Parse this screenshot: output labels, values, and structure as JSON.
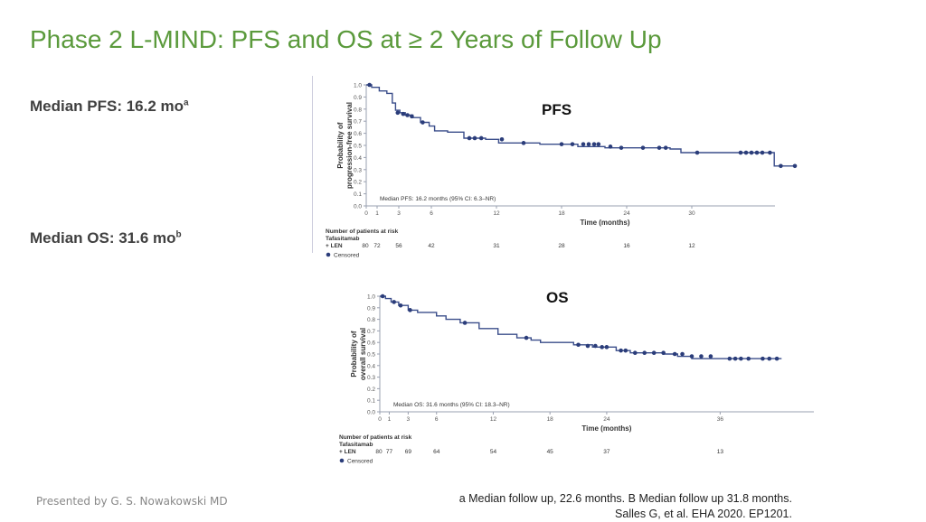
{
  "slide": {
    "title": "Phase 2 L-MIND: PFS and OS at ≥ 2 Years of Follow Up",
    "median_pfs_label": "Median PFS: 16.2 mo",
    "median_pfs_sup": "a",
    "median_os_label": "Median OS: 31.6 mo",
    "median_os_sup": "b",
    "presenter": "Presented by G. S. Nowakowski MD",
    "footnote_line1": "a Median follow up, 22.6 months. B Median follow up 31.8 months.",
    "footnote_line2": "Salles G, et al. EHA 2020. EP1201."
  },
  "colors": {
    "title": "#5b9a3c",
    "curve": "#3a4d8a",
    "marker": "#2b3d7a"
  },
  "chart_data": [
    {
      "type": "line",
      "title": "PFS",
      "ylabel": "Probability of progression-free survival",
      "ylabel_lines": [
        "Probability of",
        "progression-free survival"
      ],
      "xlabel": "Time (months)",
      "ylim": [
        0,
        1.0
      ],
      "xlim": [
        0,
        36
      ],
      "x_ticks": [
        0,
        1,
        3,
        6,
        12,
        18,
        24,
        30
      ],
      "y_ticks": [
        "0.0",
        "0.1",
        "0.2",
        "0.3",
        "0.4",
        "0.5",
        "0.6",
        "0.7",
        "0.8",
        "0.9",
        "1.0"
      ],
      "annotation": "Median PFS: 16.2 months (95% CI: 6.3–NR)",
      "risk_title": "Number of patients at risk",
      "risk_group": [
        "Tafasitamab",
        "+ LEN"
      ],
      "risk_counts": [
        80,
        72,
        56,
        42,
        31,
        28,
        16,
        12
      ],
      "legend_label": "Censored",
      "series": [
        {
          "steps": [
            [
              0,
              1.0
            ],
            [
              0.5,
              0.98
            ],
            [
              1.2,
              0.95
            ],
            [
              1.9,
              0.93
            ],
            [
              2.4,
              0.85
            ],
            [
              2.7,
              0.79
            ],
            [
              3.1,
              0.77
            ],
            [
              3.6,
              0.75
            ],
            [
              4.3,
              0.73
            ],
            [
              5.0,
              0.69
            ],
            [
              5.8,
              0.66
            ],
            [
              6.3,
              0.62
            ],
            [
              7.5,
              0.61
            ],
            [
              9.0,
              0.56
            ],
            [
              11.0,
              0.55
            ],
            [
              12.2,
              0.52
            ],
            [
              16.0,
              0.51
            ],
            [
              19.5,
              0.49
            ],
            [
              22.0,
              0.48
            ],
            [
              28.0,
              0.47
            ],
            [
              29.0,
              0.44
            ],
            [
              37.0,
              0.44
            ],
            [
              37.6,
              0.33
            ],
            [
              39.5,
              0.33
            ]
          ],
          "censored": [
            [
              0.3,
              1.0
            ],
            [
              2.9,
              0.77
            ],
            [
              3.4,
              0.76
            ],
            [
              3.8,
              0.75
            ],
            [
              4.2,
              0.74
            ],
            [
              5.2,
              0.69
            ],
            [
              9.5,
              0.56
            ],
            [
              10.0,
              0.56
            ],
            [
              10.6,
              0.56
            ],
            [
              12.5,
              0.55
            ],
            [
              14.5,
              0.52
            ],
            [
              18.0,
              0.51
            ],
            [
              19.0,
              0.51
            ],
            [
              20.0,
              0.51
            ],
            [
              20.5,
              0.51
            ],
            [
              21.0,
              0.51
            ],
            [
              21.4,
              0.51
            ],
            [
              22.5,
              0.49
            ],
            [
              23.5,
              0.48
            ],
            [
              25.5,
              0.48
            ],
            [
              27.0,
              0.48
            ],
            [
              27.6,
              0.48
            ],
            [
              30.5,
              0.44
            ],
            [
              34.5,
              0.44
            ],
            [
              35.0,
              0.44
            ],
            [
              35.5,
              0.44
            ],
            [
              36.0,
              0.44
            ],
            [
              36.5,
              0.44
            ],
            [
              37.2,
              0.44
            ],
            [
              38.2,
              0.33
            ],
            [
              39.5,
              0.33
            ]
          ]
        }
      ]
    },
    {
      "type": "line",
      "title": "OS",
      "ylabel": "Probability of overall survival",
      "ylabel_lines": [
        "Probability of",
        "overall survival"
      ],
      "xlabel": "Time (months)",
      "ylim": [
        0,
        1.0
      ],
      "xlim": [
        0,
        44
      ],
      "x_ticks": [
        0,
        1,
        3,
        6,
        12,
        18,
        24,
        36
      ],
      "y_ticks": [
        "0.0",
        "0.1",
        "0.2",
        "0.3",
        "0.4",
        "0.5",
        "0.6",
        "0.7",
        "0.8",
        "0.9",
        "1.0"
      ],
      "annotation": "Median OS: 31.6 months (95% CI: 18.3–NR)",
      "risk_title": "Number of patients at risk",
      "risk_group": [
        "Tafasitamab",
        "+ LEN"
      ],
      "risk_counts": [
        80,
        77,
        69,
        64,
        54,
        45,
        37,
        13
      ],
      "legend_label": "Censored",
      "series": [
        {
          "steps": [
            [
              0,
              1.0
            ],
            [
              0.6,
              0.98
            ],
            [
              1.2,
              0.95
            ],
            [
              2.0,
              0.92
            ],
            [
              3.0,
              0.88
            ],
            [
              4.0,
              0.86
            ],
            [
              6.0,
              0.83
            ],
            [
              7.0,
              0.8
            ],
            [
              8.5,
              0.77
            ],
            [
              10.5,
              0.72
            ],
            [
              12.5,
              0.67
            ],
            [
              14.5,
              0.64
            ],
            [
              16.0,
              0.62
            ],
            [
              17.0,
              0.6
            ],
            [
              20.5,
              0.58
            ],
            [
              22.5,
              0.56
            ],
            [
              25.0,
              0.53
            ],
            [
              26.5,
              0.51
            ],
            [
              30.0,
              0.5
            ],
            [
              31.5,
              0.48
            ],
            [
              33.0,
              0.46
            ],
            [
              42.5,
              0.46
            ]
          ],
          "censored": [
            [
              0.3,
              1.0
            ],
            [
              1.5,
              0.95
            ],
            [
              2.2,
              0.92
            ],
            [
              3.2,
              0.88
            ],
            [
              9.0,
              0.77
            ],
            [
              15.5,
              0.64
            ],
            [
              21.0,
              0.58
            ],
            [
              22.0,
              0.57
            ],
            [
              22.8,
              0.57
            ],
            [
              23.5,
              0.56
            ],
            [
              24.0,
              0.56
            ],
            [
              25.5,
              0.53
            ],
            [
              26.0,
              0.53
            ],
            [
              27.0,
              0.51
            ],
            [
              28.0,
              0.51
            ],
            [
              29.0,
              0.51
            ],
            [
              30.0,
              0.51
            ],
            [
              31.2,
              0.5
            ],
            [
              32.0,
              0.5
            ],
            [
              33.0,
              0.48
            ],
            [
              34.0,
              0.48
            ],
            [
              35.0,
              0.48
            ],
            [
              37.0,
              0.46
            ],
            [
              37.6,
              0.46
            ],
            [
              38.2,
              0.46
            ],
            [
              39.0,
              0.46
            ],
            [
              40.5,
              0.46
            ],
            [
              41.2,
              0.46
            ],
            [
              42.0,
              0.46
            ]
          ]
        }
      ]
    }
  ]
}
